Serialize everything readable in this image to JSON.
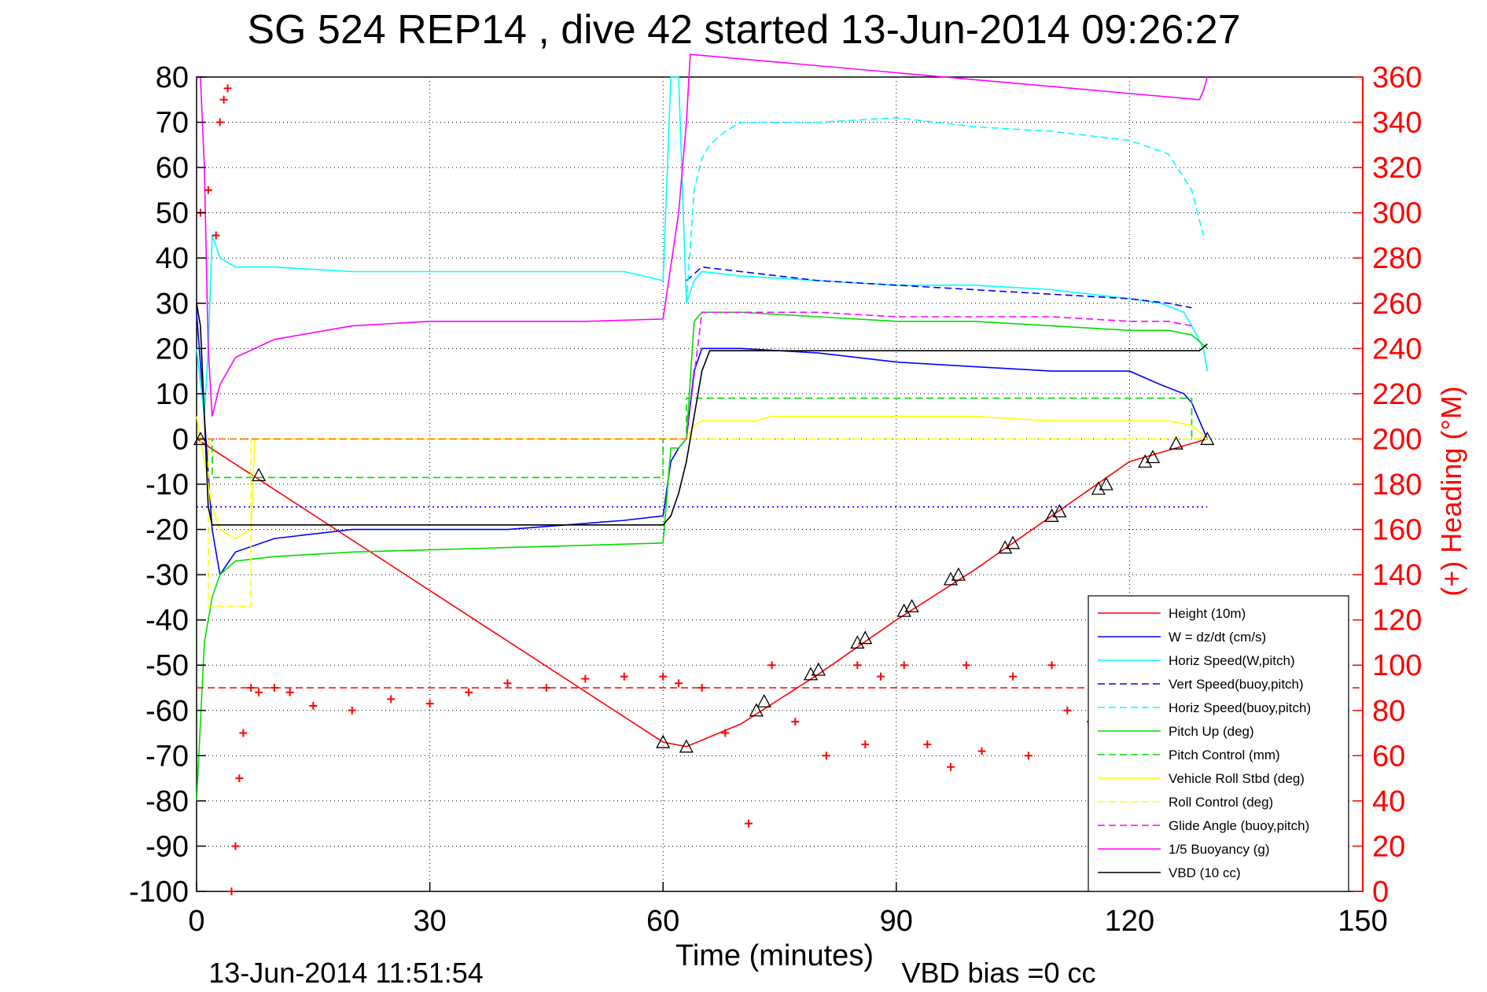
{
  "chart_data": {
    "type": "line",
    "title": "SG 524   REP14  , dive 42 started 13-Jun-2014 09:26:27",
    "xlabel": "Time (minutes)",
    "ylabel_right": "(+) Heading (°M)",
    "footer_left": "13-Jun-2014 11:51:54",
    "footer_right": "VBD bias =0 cc",
    "xlim": [
      0,
      150
    ],
    "ylim": [
      -100,
      80
    ],
    "ylim_right": [
      0,
      360
    ],
    "x_ticks": [
      0,
      30,
      60,
      90,
      120,
      150
    ],
    "y_ticks": [
      80,
      70,
      60,
      50,
      40,
      30,
      20,
      10,
      0,
      -10,
      -20,
      -30,
      -40,
      -50,
      -60,
      -70,
      -80,
      -90,
      -100
    ],
    "y_ticks_right": [
      360,
      340,
      320,
      300,
      280,
      260,
      240,
      220,
      200,
      180,
      160,
      140,
      120,
      100,
      80,
      60,
      40,
      20,
      0
    ],
    "grid": true,
    "legend_position": "bottom-right",
    "colors": {
      "red": "#ff0000",
      "blue": "#0000ff",
      "cyan": "#00ffff",
      "green": "#00dd00",
      "yellow": "#ffff00",
      "magenta": "#ff00ff",
      "black": "#000000",
      "orange": "#ff8800"
    },
    "series": [
      {
        "name": "Height (10m)",
        "color": "#ff0000",
        "dash": false,
        "x": [
          0,
          60,
          63,
          70,
          80,
          90,
          100,
          110,
          120,
          130
        ],
        "y": [
          0,
          -67,
          -68,
          -63,
          -52,
          -40,
          -29,
          -17,
          -5,
          0
        ]
      },
      {
        "name": "W = dz/dt (cm/s)",
        "color": "#0000ff",
        "dash": false,
        "x": [
          0,
          1,
          2,
          3,
          5,
          10,
          20,
          40,
          55,
          60,
          61,
          62,
          63,
          64,
          65,
          70,
          80,
          90,
          100,
          110,
          120,
          124,
          127,
          128,
          129.5,
          130
        ],
        "y": [
          28,
          5,
          -20,
          -30,
          -25,
          -22,
          -20,
          -20,
          -18,
          -17,
          -5,
          -2,
          0,
          15,
          20,
          20,
          19,
          17,
          16,
          15,
          15,
          12,
          10,
          8,
          2,
          0
        ]
      },
      {
        "name": "Horiz Speed(W,pitch)",
        "color": "#00ffff",
        "dash": false,
        "x": [
          0,
          1,
          1.5,
          2,
          3,
          5,
          10,
          20,
          40,
          55,
          60,
          61,
          62,
          63,
          64,
          65,
          70,
          80,
          90,
          100,
          110,
          120,
          124,
          127,
          128,
          129.5,
          130
        ],
        "y": [
          20,
          5,
          20,
          45,
          40,
          38,
          38,
          37,
          37,
          37,
          35,
          80,
          80,
          30,
          35,
          37,
          36,
          35,
          34,
          34,
          33,
          31,
          30,
          28,
          25,
          20,
          15
        ]
      },
      {
        "name": "Vert Speed(buoy,pitch)",
        "color": "#0000ff",
        "dash": true,
        "x": [
          63,
          65,
          70,
          80,
          90,
          100,
          110,
          120,
          125,
          128
        ],
        "y": [
          35,
          38,
          37,
          35,
          34,
          33,
          32,
          31,
          30,
          29
        ]
      },
      {
        "name": "Horiz Speed(buoy,pitch)",
        "color": "#00ffff",
        "dash": true,
        "x": [
          63,
          64,
          65,
          66,
          68,
          70,
          80,
          90,
          100,
          110,
          120,
          125,
          128,
          129.5
        ],
        "y": [
          30,
          55,
          62,
          65,
          68,
          70,
          70,
          71,
          69,
          68,
          66,
          63,
          55,
          45
        ]
      },
      {
        "name": "Pitch Up (deg)",
        "color": "#00dd00",
        "dash": false,
        "x": [
          0,
          1,
          2,
          3,
          5,
          10,
          20,
          40,
          60,
          61,
          62,
          63,
          64,
          65,
          70,
          80,
          90,
          100,
          110,
          120,
          125,
          128,
          130
        ],
        "y": [
          -80,
          -45,
          -35,
          -30,
          -27,
          -26,
          -25,
          -24,
          -23,
          -2,
          -2,
          0,
          26,
          28,
          28,
          27,
          26,
          26,
          25,
          24,
          24,
          23,
          20
        ]
      },
      {
        "name": "Pitch Control (mm)",
        "color": "#00dd00",
        "dash": true,
        "x": [
          0,
          2,
          2,
          60,
          60,
          63,
          63,
          65,
          65,
          128,
          128,
          130
        ],
        "y": [
          0,
          0,
          -8.5,
          -8.5,
          0,
          0,
          9,
          9,
          9,
          9,
          0,
          0
        ]
      },
      {
        "name": "Vehicle Roll Stbd (deg)",
        "color": "#ffff00",
        "dash": false,
        "x": [
          0,
          2,
          3,
          5,
          7,
          7.5,
          60,
          63,
          64,
          65,
          70,
          72,
          74,
          80,
          90,
          100,
          110,
          120,
          125,
          128,
          130
        ],
        "y": [
          5,
          -15,
          -20,
          -22,
          -20,
          0,
          0,
          0,
          3,
          4,
          4,
          4,
          5,
          5,
          5,
          5,
          4,
          4,
          4,
          3,
          0
        ]
      },
      {
        "name": "Roll Control (deg)",
        "color": "#ffff00",
        "dash": true,
        "x": [
          0,
          1.5,
          1.5,
          7,
          7,
          60,
          60,
          63,
          63,
          70,
          71,
          71,
          128,
          128,
          130
        ],
        "y": [
          0,
          0,
          -37,
          -37,
          0,
          0,
          0,
          0,
          0,
          0,
          0,
          0,
          0,
          0,
          0
        ]
      },
      {
        "name": "Glide Angle (buoy,pitch)",
        "color": "#ff00ff",
        "dash": true,
        "x": [
          0,
          60,
          63,
          65,
          70,
          80,
          90,
          100,
          110,
          120,
          125,
          128
        ],
        "y": [
          0,
          0,
          0,
          28,
          28,
          28,
          27,
          27,
          27,
          26,
          26,
          25
        ]
      },
      {
        "name": "1/5 Buoyancy (g)",
        "color": "#ff00ff",
        "dash": false,
        "x": [
          0.5,
          1,
          1.5,
          2,
          3,
          5,
          10,
          20,
          30,
          40,
          50,
          60,
          62,
          63,
          63.5,
          129,
          129.5,
          130
        ],
        "y": [
          80,
          60,
          20,
          5,
          12,
          18,
          22,
          25,
          26,
          26,
          26,
          26.5,
          50,
          70,
          85,
          75,
          77,
          80
        ]
      },
      {
        "name": "VBD (10 cc)",
        "color": "#000000",
        "dash": false,
        "x": [
          0,
          0.5,
          1,
          1.5,
          2,
          60,
          61,
          62,
          63,
          64,
          65,
          66,
          70,
          128,
          129,
          130
        ],
        "y": [
          30,
          25,
          5,
          -15,
          -19,
          -19,
          -17,
          -12,
          -5,
          5,
          15,
          19.5,
          19.5,
          19.5,
          19.5,
          21
        ]
      },
      {
        "name": "",
        "color": "#ff8800",
        "dash": true,
        "x": [
          0,
          63
        ],
        "y": [
          0,
          0
        ]
      },
      {
        "name": "",
        "color": "#ff0000",
        "dash": true,
        "axis": "right",
        "x": [
          0,
          150
        ],
        "y": [
          90,
          90
        ]
      },
      {
        "name": "",
        "color": "#0000ff",
        "dash": "dot",
        "x": [
          0,
          130
        ],
        "y": [
          -15,
          -15
        ]
      },
      {
        "name": "",
        "color": "#ff0000",
        "marker": "+",
        "axis": "right",
        "x": [
          0.5,
          1.5,
          2.5,
          3,
          3.5,
          4,
          4.5,
          5,
          5.5,
          6,
          7,
          8,
          10,
          12,
          15,
          20,
          25,
          30,
          35,
          40,
          45,
          50,
          55,
          60,
          62,
          65,
          68,
          71,
          74,
          77,
          81,
          85,
          86,
          88,
          91,
          94,
          97,
          99,
          101,
          105,
          107,
          110,
          112,
          115
        ],
        "y": [
          300,
          310,
          290,
          340,
          350,
          355,
          0,
          20,
          50,
          70,
          90,
          88,
          90,
          88,
          82,
          80,
          85,
          83,
          88,
          92,
          90,
          94,
          95,
          95,
          92,
          90,
          70,
          30,
          100,
          75,
          60,
          100,
          65,
          95,
          100,
          65,
          55,
          100,
          62,
          95,
          60,
          100,
          80,
          75
        ]
      },
      {
        "name": "",
        "color": "#000000",
        "marker": "triangle",
        "x": [
          0.5,
          8,
          60,
          63,
          72,
          73,
          79,
          80,
          85,
          86,
          91,
          92,
          97,
          98,
          104,
          105,
          110,
          111,
          116,
          117,
          122,
          123,
          126,
          130
        ],
        "y": [
          0,
          -8,
          -67,
          -68,
          -60,
          -58,
          -52,
          -51,
          -45,
          -44,
          -38,
          -37,
          -31,
          -30,
          -24,
          -23,
          -17,
          -16,
          -11,
          -10,
          -5,
          -4,
          -1,
          0
        ]
      }
    ]
  }
}
